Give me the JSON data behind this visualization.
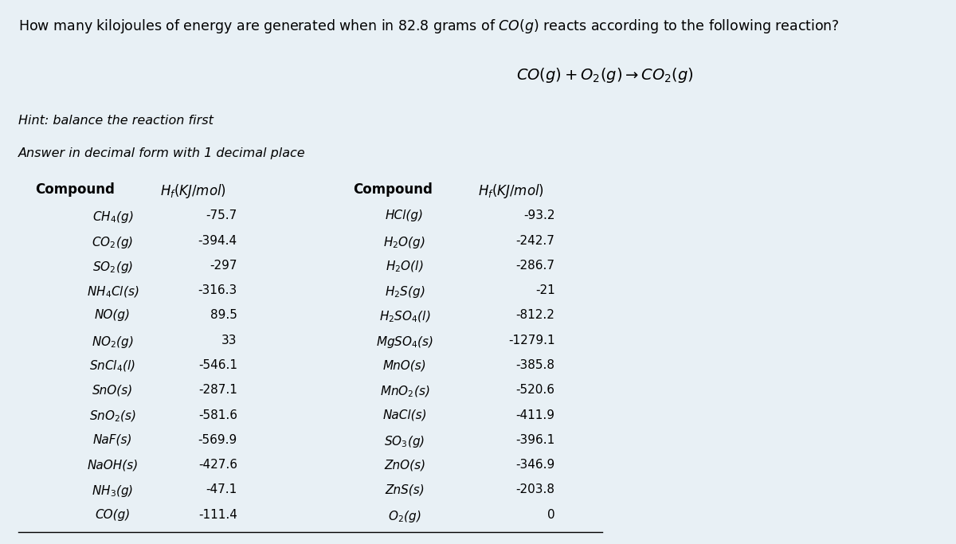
{
  "bg_color": "#e8f0f5",
  "left_compounds": [
    "CH$_4$(g)",
    "CO$_2$(g)",
    "SO$_2$(g)",
    "NH$_4$Cl(s)",
    "NO(g)",
    "NO$_2$(g)",
    "SnCl$_4$(l)",
    "SnO(s)",
    "SnO$_2$(s)",
    "NaF(s)",
    "NaOH(s)",
    "NH$_3$(g)",
    "CO(g)"
  ],
  "left_values": [
    "-75.7",
    "-394.4",
    "-297",
    "-316.3",
    "89.5",
    "33",
    "-546.1",
    "-287.1",
    "-581.6",
    "-569.9",
    "-427.6",
    "-47.1",
    "-111.4"
  ],
  "right_compounds": [
    "HCl(g)",
    "H$_2$O(g)",
    "H$_2$O(l)",
    "H$_2$S(g)",
    "H$_2$SO$_4$(l)",
    "MgSO$_4$(s)",
    "MnO(s)",
    "MnO$_2$(s)",
    "NaCl(s)",
    "SO$_3$(g)",
    "ZnO(s)",
    "ZnS(s)",
    "O$_2$(g)"
  ],
  "right_values": [
    "-93.2",
    "-242.7",
    "-286.7",
    "-21",
    "-812.2",
    "-1279.1",
    "-385.8",
    "-520.6",
    "-411.9",
    "-396.1",
    "-346.9",
    "-203.8",
    "0"
  ]
}
